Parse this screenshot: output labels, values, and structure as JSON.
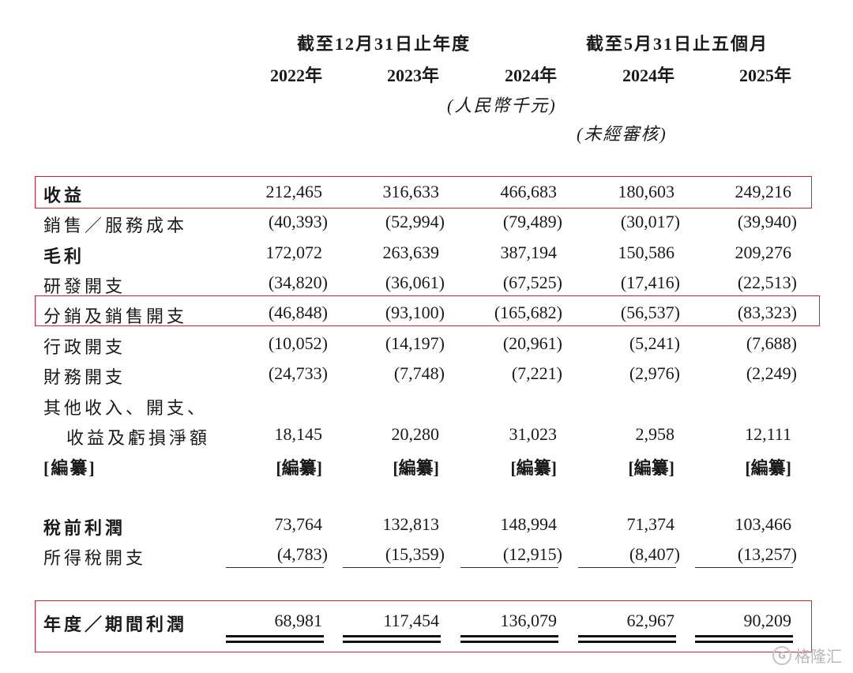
{
  "header": {
    "group1": "截至12月31日止年度",
    "group2": "截至5月31日止五個月",
    "years": [
      "2022年",
      "2023年",
      "2024年",
      "2024年",
      "2025年"
    ],
    "currency": "(人民幣千元)",
    "unaudited": "(未經審核)"
  },
  "rows": [
    {
      "label": "收益",
      "values": [
        "212,465",
        "316,633",
        "466,683",
        "180,603",
        "249,216"
      ]
    },
    {
      "label": "銷售／服務成本",
      "values": [
        "(40,393)",
        "(52,994)",
        "(79,489)",
        "(30,017)",
        "(39,940)"
      ]
    },
    {
      "label": "毛利",
      "values": [
        "172,072",
        "263,639",
        "387,194",
        "150,586",
        "209,276"
      ]
    },
    {
      "label": "研發開支",
      "values": [
        "(34,820)",
        "(36,061)",
        "(67,525)",
        "(17,416)",
        "(22,513)"
      ]
    },
    {
      "label": "分銷及銷售開支",
      "values": [
        "(46,848)",
        "(93,100)",
        "(165,682)",
        "(56,537)",
        "(83,323)"
      ]
    },
    {
      "label": "行政開支",
      "values": [
        "(10,052)",
        "(14,197)",
        "(20,961)",
        "(5,241)",
        "(7,688)"
      ]
    },
    {
      "label": "財務開支",
      "values": [
        "(24,733)",
        "(7,748)",
        "(7,221)",
        "(2,976)",
        "(2,249)"
      ]
    },
    {
      "label": "其他收入、開支、",
      "label2": "收益及虧損淨額",
      "values": [
        "18,145",
        "20,280",
        "31,023",
        "2,958",
        "12,111"
      ]
    },
    {
      "label": "[編纂]",
      "values": [
        "[編纂]",
        "[編纂]",
        "[編纂]",
        "[編纂]",
        "[編纂]"
      ]
    },
    {
      "label": "稅前利潤",
      "values": [
        "73,764",
        "132,813",
        "148,994",
        "71,374",
        "103,466"
      ]
    },
    {
      "label": "所得稅開支",
      "values": [
        "(4,783)",
        "(15,359)",
        "(12,915)",
        "(8,407)",
        "(13,257)"
      ]
    },
    {
      "label": "年度／期間利潤",
      "values": [
        "68,981",
        "117,454",
        "136,079",
        "62,967",
        "90,209"
      ]
    }
  ],
  "watermark": {
    "icon": "gelonghui-logo-icon",
    "text": "格隆汇",
    "icon_glyph": "G"
  },
  "colors": {
    "highlight_box": "#d42030",
    "text": "#1a1a1a"
  }
}
